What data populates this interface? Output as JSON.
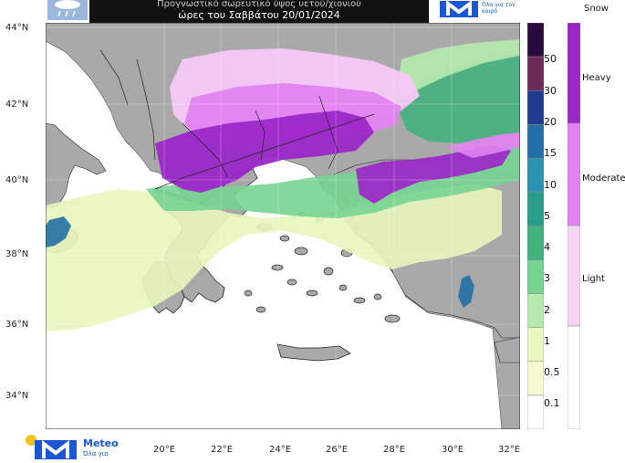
{
  "title": {
    "line1": "Προγνωστικό σωρευτικό ύψος υετού/χιονιού",
    "line2": "ώρες του Σαββάτου 20/01/2024"
  },
  "brand": {
    "name": "Meteo",
    "tagline_top": "Όλα για τον καιρό",
    "tagline_bottom": "Όλα για"
  },
  "map": {
    "lat_labels": [
      "44°N",
      "42°N",
      "40°N",
      "38°N",
      "36°N",
      "34°N"
    ],
    "lon_labels": [
      "20°E",
      "22°E",
      "24°E",
      "26°E",
      "28°E",
      "30°E",
      "32°E"
    ],
    "colors": {
      "land": "#a9a9a9",
      "sea": "#ffffff",
      "heavy_snow": "#9b27c9",
      "moderate_snow": "#e283f0",
      "light_snow": "#f7c8f7"
    }
  },
  "legend_rain": {
    "labels": [
      "50",
      "30",
      "20",
      "15",
      "10",
      "5",
      "4",
      "3",
      "2",
      "1",
      "0.5",
      "0.1"
    ],
    "colors": [
      "#2a0a3a",
      "#6b2a5a",
      "#1f3a8f",
      "#236fa5",
      "#2a93b2",
      "#2a9c8c",
      "#3fb37c",
      "#77d392",
      "#b6e9ad",
      "#e9f6bd",
      "#f5f9cf",
      "#ffffff"
    ]
  },
  "legend_snow": {
    "title": "Snow",
    "labels": [
      "Heavy",
      "Moderate",
      "Light"
    ],
    "colors": [
      "#9b27c9",
      "#e283f0",
      "#f7d3f7",
      "#ffffff"
    ]
  }
}
